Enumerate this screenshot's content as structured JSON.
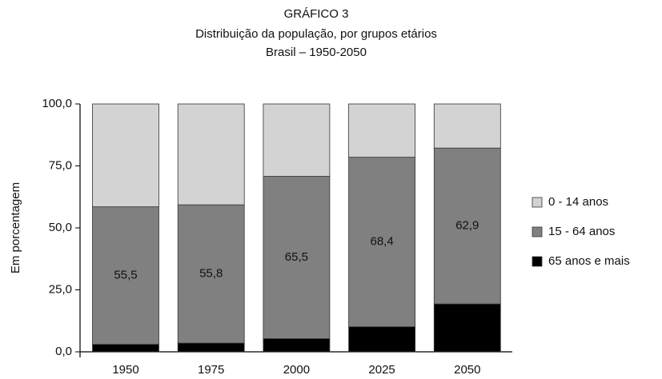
{
  "chart_data": {
    "type": "stacked_bar",
    "title": "GRÁFICO 3",
    "subtitle": "Distribuição da população, por grupos etários",
    "subtitle2": "Brasil – 1950-2050",
    "y_label": "Em porcentagem",
    "categories": [
      "1950",
      "1975",
      "2000",
      "2025",
      "2050"
    ],
    "series": [
      {
        "name": "65 anos e mais",
        "color": "#000000",
        "values": [
          3.0,
          3.5,
          5.3,
          10.1,
          19.3
        ]
      },
      {
        "name": "15 - 64 anos",
        "color": "#808080",
        "values": [
          55.5,
          55.8,
          65.5,
          68.4,
          62.9
        ],
        "value_labels": [
          "55,5",
          "55,8",
          "65,5",
          "68,4",
          "62,9"
        ]
      },
      {
        "name": "0 - 14 anos",
        "color": "#d3d3d3",
        "values": [
          41.5,
          40.7,
          29.2,
          21.5,
          17.8
        ]
      }
    ],
    "ylim": [
      0,
      100
    ],
    "yticks": [
      {
        "value": 0,
        "label": "0,0"
      },
      {
        "value": 25,
        "label": "25,0"
      },
      {
        "value": 50,
        "label": "50,0"
      },
      {
        "value": 75,
        "label": "75,0"
      },
      {
        "value": 100,
        "label": "100,0"
      }
    ]
  }
}
